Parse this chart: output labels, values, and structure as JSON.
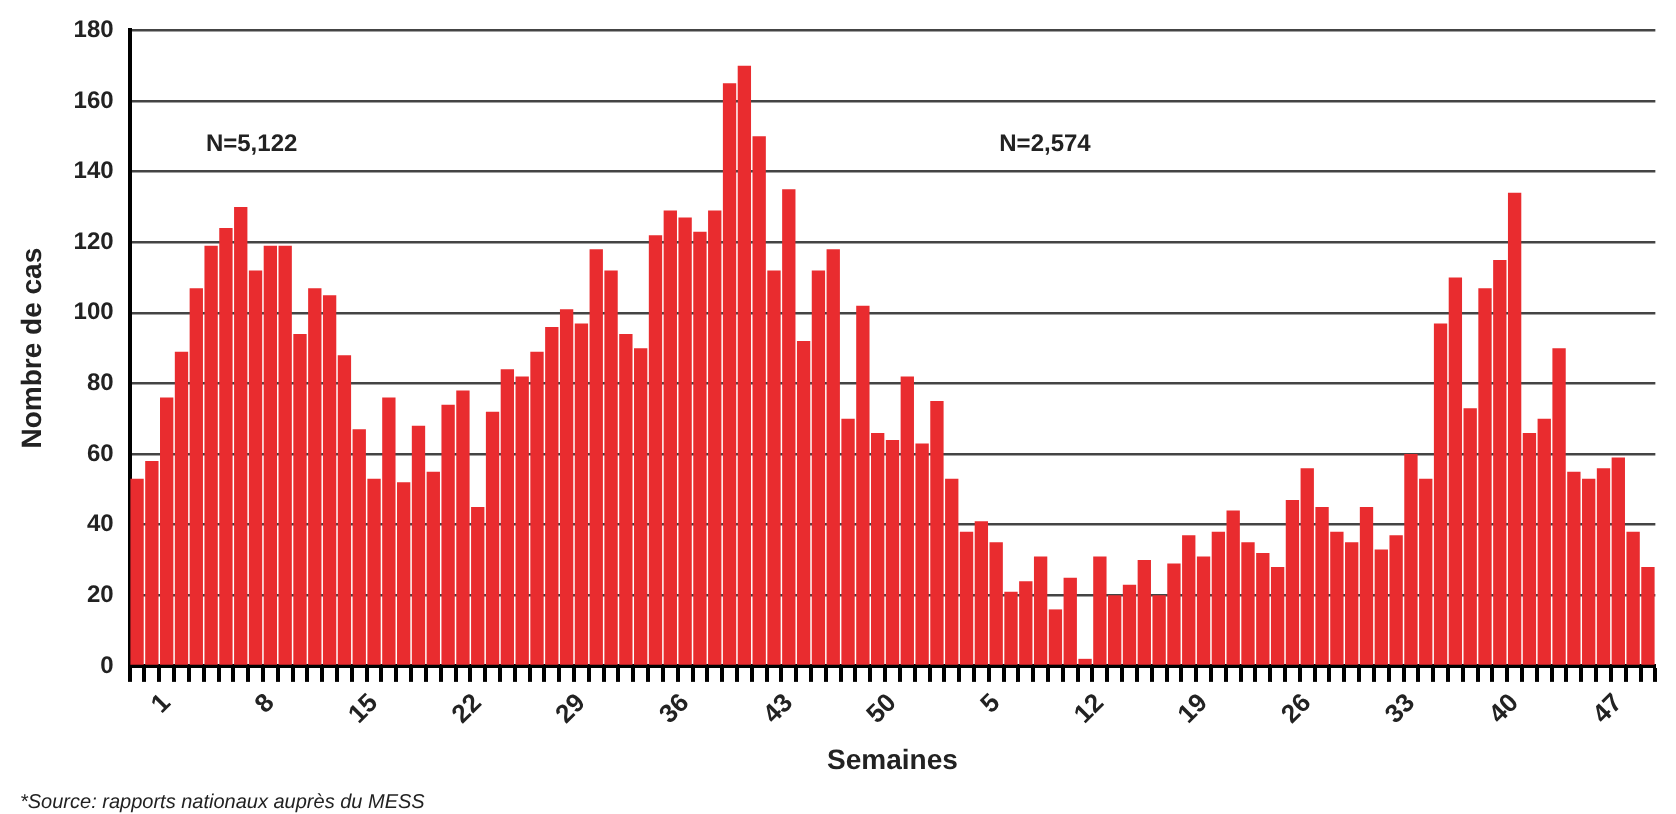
{
  "chart_data": {
    "type": "bar",
    "xlabel": "Semaines",
    "ylabel": "Nombre de cas",
    "color": "#e92c2f",
    "categories": [
      null,
      null,
      "1",
      null,
      null,
      null,
      null,
      null,
      null,
      "8",
      null,
      null,
      null,
      null,
      null,
      null,
      "15",
      null,
      null,
      null,
      null,
      null,
      null,
      "22",
      null,
      null,
      null,
      null,
      null,
      null,
      "29",
      null,
      null,
      null,
      null,
      null,
      null,
      "36",
      null,
      null,
      null,
      null,
      null,
      null,
      "43",
      null,
      null,
      null,
      null,
      null,
      null,
      "50",
      null,
      null,
      null,
      null,
      null,
      null,
      "5",
      null,
      null,
      null,
      null,
      null,
      null,
      "12",
      null,
      null,
      null,
      null,
      null,
      null,
      "19",
      null,
      null,
      null,
      null,
      null,
      null,
      "26",
      null,
      null,
      null,
      null,
      null,
      null,
      "33",
      null,
      null,
      null,
      null,
      null,
      null,
      "40",
      null,
      null,
      null,
      null,
      null,
      null,
      "47",
      null,
      null
    ],
    "values": [
      53,
      58,
      76,
      89,
      107,
      119,
      124,
      130,
      112,
      119,
      119,
      94,
      107,
      105,
      88,
      67,
      53,
      76,
      52,
      68,
      55,
      74,
      78,
      45,
      72,
      84,
      82,
      89,
      96,
      101,
      97,
      118,
      112,
      94,
      90,
      122,
      129,
      127,
      123,
      129,
      165,
      170,
      150,
      112,
      135,
      92,
      112,
      118,
      70,
      102,
      66,
      64,
      82,
      63,
      75,
      53,
      38,
      41,
      35,
      21,
      24,
      31,
      16,
      25,
      2,
      31,
      20,
      23,
      30,
      20,
      29,
      37,
      31,
      38,
      44,
      35,
      32,
      28,
      47,
      56,
      45,
      38,
      35,
      45,
      33,
      37,
      60,
      53,
      97,
      110,
      73,
      107,
      115,
      134,
      66,
      70,
      90,
      55,
      53,
      56,
      59,
      38,
      28
    ],
    "ylim": [
      0,
      180
    ],
    "yticks": [
      0,
      20,
      40,
      60,
      80,
      100,
      120,
      140,
      160,
      180
    ],
    "grid": "y",
    "legend": false,
    "annotations": [
      "N=5,122",
      "N=2,574",
      "*Source: rapports nationaux auprès du MESS"
    ]
  }
}
